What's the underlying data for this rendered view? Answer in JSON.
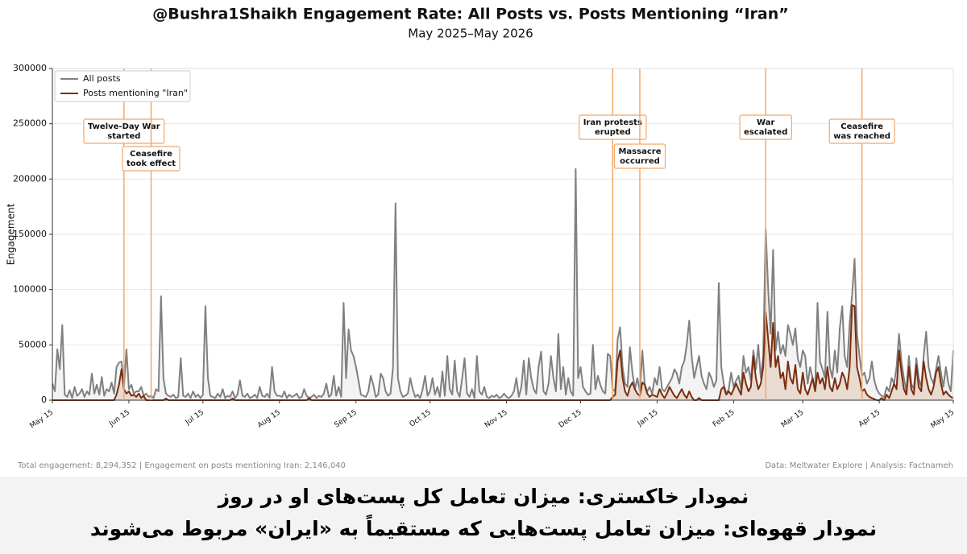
{
  "chart_data": {
    "type": "line",
    "title": "@Bushra1Shaikh Engagement Rate: All Posts vs. Posts Mentioning “Iran”",
    "subtitle": "May 2025–May 2026",
    "y_label": "Engagement",
    "ylim": [
      0,
      300000
    ],
    "yticks": [
      0,
      50000,
      100000,
      150000,
      200000,
      250000,
      300000
    ],
    "grid": true,
    "legend": "upper left",
    "categories": [
      "May 15",
      null,
      null,
      null,
      null,
      null,
      null,
      null,
      null,
      null,
      null,
      null,
      null,
      null,
      null,
      null,
      null,
      null,
      null,
      null,
      null,
      null,
      null,
      null,
      null,
      null,
      null,
      null,
      null,
      null,
      null,
      "Jun 15",
      null,
      null,
      null,
      null,
      null,
      null,
      null,
      null,
      null,
      null,
      null,
      null,
      null,
      null,
      null,
      null,
      null,
      null,
      null,
      null,
      null,
      null,
      null,
      null,
      null,
      null,
      null,
      null,
      null,
      "Jul 15",
      null,
      null,
      null,
      null,
      null,
      null,
      null,
      null,
      null,
      null,
      null,
      null,
      null,
      null,
      null,
      null,
      null,
      null,
      null,
      null,
      null,
      null,
      null,
      null,
      null,
      null,
      null,
      null,
      null,
      null,
      "Aug 15",
      null,
      null,
      null,
      null,
      null,
      null,
      null,
      null,
      null,
      null,
      null,
      null,
      null,
      null,
      null,
      null,
      null,
      null,
      null,
      null,
      null,
      null,
      null,
      null,
      null,
      null,
      null,
      null,
      null,
      null,
      "Sep 15",
      null,
      null,
      null,
      null,
      null,
      null,
      null,
      null,
      null,
      null,
      null,
      null,
      null,
      null,
      null,
      null,
      null,
      null,
      null,
      null,
      null,
      null,
      null,
      null,
      null,
      null,
      null,
      null,
      null,
      "Oct 15",
      null,
      null,
      null,
      null,
      null,
      null,
      null,
      null,
      null,
      null,
      null,
      null,
      null,
      null,
      null,
      null,
      null,
      null,
      null,
      null,
      null,
      null,
      null,
      null,
      null,
      null,
      null,
      null,
      null,
      null,
      "Nov 15",
      null,
      null,
      null,
      null,
      null,
      null,
      null,
      null,
      null,
      null,
      null,
      null,
      null,
      null,
      null,
      null,
      null,
      null,
      null,
      null,
      null,
      null,
      null,
      null,
      null,
      null,
      null,
      null,
      null,
      "Dec 15",
      null,
      null,
      null,
      null,
      null,
      null,
      null,
      null,
      null,
      null,
      null,
      null,
      null,
      null,
      null,
      null,
      null,
      null,
      null,
      null,
      null,
      null,
      null,
      null,
      null,
      null,
      null,
      null,
      null,
      null,
      "Jan 15",
      null,
      null,
      null,
      null,
      null,
      null,
      null,
      null,
      null,
      null,
      null,
      null,
      null,
      null,
      null,
      null,
      null,
      null,
      null,
      null,
      null,
      null,
      null,
      null,
      null,
      null,
      null,
      null,
      null,
      null,
      "Feb 15",
      null,
      null,
      null,
      null,
      null,
      null,
      null,
      null,
      null,
      null,
      null,
      null,
      null,
      null,
      null,
      null,
      null,
      null,
      null,
      null,
      null,
      null,
      null,
      null,
      null,
      null,
      null,
      "Mar 15",
      null,
      null,
      null,
      null,
      null,
      null,
      null,
      null,
      null,
      null,
      null,
      null,
      null,
      null,
      null,
      null,
      null,
      null,
      null,
      null,
      null,
      null,
      null,
      null,
      null,
      null,
      null,
      null,
      null,
      null,
      "Apr 15",
      null,
      null,
      null,
      null,
      null,
      null,
      null,
      null,
      null,
      null,
      null,
      null,
      null,
      null,
      null,
      null,
      null,
      null,
      null,
      null,
      null,
      null,
      null,
      null,
      null,
      null,
      null,
      null,
      null,
      "May 15"
    ],
    "series": [
      {
        "name": "All posts",
        "color": "#808080",
        "fill": "#f0f0f0",
        "values": [
          15000,
          8000,
          46000,
          28000,
          68000,
          5000,
          3000,
          9000,
          2000,
          12000,
          4000,
          6000,
          10000,
          3000,
          8000,
          5000,
          24000,
          6000,
          14000,
          5000,
          21000,
          4000,
          10000,
          8000,
          16000,
          6000,
          30000,
          34000,
          35000,
          12000,
          46000,
          10000,
          14000,
          6000,
          8000,
          8000,
          12000,
          4000,
          6000,
          3000,
          4000,
          2000,
          10000,
          8000,
          94000,
          20000,
          6000,
          4000,
          3000,
          5000,
          2000,
          3000,
          38000,
          4000,
          3000,
          6000,
          2000,
          8000,
          3000,
          5000,
          2000,
          5000,
          85000,
          20000,
          4000,
          3000,
          2000,
          6000,
          3000,
          10000,
          2000,
          4000,
          3000,
          8000,
          2000,
          5000,
          18000,
          4000,
          3000,
          6000,
          2000,
          3000,
          5000,
          2000,
          12000,
          4000,
          3000,
          6000,
          2000,
          30000,
          8000,
          4000,
          4000,
          3000,
          8000,
          2000,
          5000,
          3000,
          4000,
          6000,
          2000,
          3000,
          10000,
          4000,
          2000,
          3000,
          5000,
          2000,
          4000,
          3000,
          6000,
          15000,
          3000,
          5000,
          22000,
          4000,
          12000,
          3000,
          88000,
          20000,
          64000,
          45000,
          40000,
          30000,
          18000,
          5000,
          4000,
          3000,
          8000,
          22000,
          14000,
          3000,
          5000,
          24000,
          20000,
          8000,
          4000,
          6000,
          30000,
          178000,
          20000,
          8000,
          3000,
          4000,
          6000,
          20000,
          10000,
          3000,
          5000,
          2000,
          10000,
          22000,
          4000,
          8000,
          20000,
          5000,
          12000,
          3000,
          26000,
          4000,
          40000,
          10000,
          5000,
          36000,
          8000,
          3000,
          20000,
          38000,
          6000,
          3000,
          10000,
          2000,
          40000,
          8000,
          5000,
          12000,
          3000,
          2000,
          4000,
          3000,
          5000,
          2000,
          3000,
          6000,
          3000,
          2000,
          4000,
          8000,
          20000,
          3000,
          12000,
          36000,
          5000,
          38000,
          20000,
          10000,
          6000,
          30000,
          44000,
          8000,
          5000,
          15000,
          40000,
          20000,
          8000,
          60000,
          10000,
          30000,
          5000,
          20000,
          8000,
          4000,
          209000,
          20000,
          30000,
          12000,
          8000,
          5000,
          6000,
          50000,
          10000,
          22000,
          14000,
          8000,
          6000,
          42000,
          40000,
          10000,
          8000,
          55000,
          66000,
          30000,
          15000,
          12000,
          48000,
          25000,
          10000,
          20000,
          8000,
          45000,
          14000,
          8000,
          12000,
          6000,
          20000,
          14000,
          30000,
          10000,
          8000,
          12000,
          16000,
          20000,
          28000,
          24000,
          15000,
          30000,
          35000,
          50000,
          72000,
          40000,
          20000,
          30000,
          40000,
          22000,
          15000,
          10000,
          25000,
          20000,
          12000,
          18000,
          106000,
          30000,
          15000,
          6000,
          10000,
          25000,
          12000,
          18000,
          22000,
          10000,
          40000,
          25000,
          30000,
          18000,
          45000,
          28000,
          50000,
          20000,
          40000,
          155000,
          100000,
          60000,
          136000,
          45000,
          62000,
          42000,
          50000,
          40000,
          68000,
          60000,
          50000,
          65000,
          38000,
          30000,
          45000,
          40000,
          15000,
          30000,
          20000,
          10000,
          88000,
          35000,
          28000,
          20000,
          80000,
          30000,
          20000,
          45000,
          25000,
          65000,
          85000,
          40000,
          30000,
          70000,
          95000,
          128000,
          60000,
          40000,
          22000,
          25000,
          15000,
          20000,
          35000,
          18000,
          10000,
          6000,
          4000,
          3000,
          12000,
          8000,
          20000,
          15000,
          30000,
          60000,
          35000,
          20000,
          8000,
          40000,
          15000,
          10000,
          38000,
          20000,
          12000,
          40000,
          62000,
          30000,
          20000,
          15000,
          28000,
          40000,
          25000,
          12000,
          30000,
          15000,
          8000,
          45000
        ]
      },
      {
        "name": "Posts mentioning \"Iran\"",
        "color": "#7a2e0e",
        "fill": "#e6d3c9",
        "values": [
          0,
          0,
          0,
          0,
          0,
          0,
          0,
          0,
          0,
          0,
          0,
          0,
          0,
          0,
          0,
          0,
          0,
          0,
          0,
          0,
          0,
          0,
          0,
          0,
          0,
          0,
          5000,
          14000,
          28000,
          10000,
          6000,
          8000,
          4000,
          5000,
          3000,
          6000,
          2000,
          4000,
          0,
          0,
          0,
          0,
          0,
          0,
          0,
          0,
          1500,
          0,
          0,
          0,
          0,
          0,
          0,
          0,
          0,
          0,
          0,
          0,
          0,
          0,
          0,
          0,
          0,
          0,
          0,
          0,
          0,
          0,
          0,
          0,
          0,
          0,
          0,
          1500,
          0,
          0,
          0,
          0,
          0,
          0,
          0,
          0,
          0,
          0,
          0,
          0,
          0,
          0,
          0,
          0,
          0,
          0,
          0,
          0,
          0,
          0,
          0,
          0,
          0,
          0,
          0,
          0,
          0,
          0,
          2000,
          0,
          0,
          0,
          0,
          0,
          0,
          0,
          0,
          0,
          0,
          0,
          0,
          0,
          0,
          0,
          0,
          0,
          0,
          0,
          0,
          0,
          0,
          0,
          0,
          0,
          0,
          0,
          0,
          0,
          0,
          0,
          0,
          0,
          0,
          0,
          0,
          0,
          0,
          0,
          0,
          0,
          0,
          0,
          0,
          0,
          0,
          0,
          0,
          0,
          0,
          0,
          0,
          0,
          0,
          0,
          0,
          0,
          0,
          0,
          0,
          0,
          0,
          0,
          0,
          0,
          0,
          0,
          0,
          0,
          0,
          0,
          0,
          0,
          0,
          0,
          0,
          0,
          0,
          0,
          0,
          0,
          0,
          0,
          0,
          0,
          0,
          0,
          0,
          0,
          0,
          0,
          0,
          0,
          0,
          0,
          0,
          0,
          0,
          0,
          0,
          0,
          0,
          0,
          0,
          0,
          0,
          0,
          0,
          0,
          0,
          0,
          0,
          0,
          0,
          0,
          0,
          0,
          0,
          0,
          0,
          0,
          0,
          3000,
          5000,
          35000,
          45000,
          20000,
          8000,
          4000,
          12000,
          16000,
          10000,
          6000,
          4000,
          16000,
          14000,
          6000,
          3000,
          5000,
          4000,
          3000,
          10000,
          5000,
          2000,
          6000,
          12000,
          8000,
          4000,
          2000,
          6000,
          10000,
          5000,
          2000,
          8000,
          3000,
          0,
          0,
          2000,
          0,
          0,
          0,
          0,
          0,
          0,
          0,
          0,
          10000,
          12000,
          5000,
          8000,
          5000,
          10000,
          15000,
          10000,
          5000,
          25000,
          15000,
          8000,
          12000,
          40000,
          20000,
          10000,
          15000,
          30000,
          80000,
          55000,
          30000,
          70000,
          30000,
          40000,
          20000,
          25000,
          10000,
          35000,
          20000,
          15000,
          32000,
          10000,
          6000,
          25000,
          10000,
          5000,
          12000,
          20000,
          8000,
          25000,
          15000,
          20000,
          10000,
          30000,
          12000,
          8000,
          20000,
          10000,
          15000,
          25000,
          20000,
          10000,
          30000,
          86000,
          85000,
          30000,
          20000,
          8000,
          10000,
          5000,
          3000,
          2000,
          1000,
          0,
          0,
          2000,
          0,
          5000,
          2000,
          8000,
          15000,
          10000,
          45000,
          25000,
          10000,
          5000,
          30000,
          10000,
          5000,
          32000,
          12000,
          8000,
          35000,
          20000,
          10000,
          5000,
          12000,
          25000,
          30000,
          15000,
          5000,
          8000,
          5000,
          3000,
          2000
        ]
      }
    ],
    "annotation_color": "#f2a86a",
    "annotations": [
      {
        "lines": [
          "Twelve-Day War",
          "started"
        ],
        "x": 29
      },
      {
        "lines": [
          "Ceasefire",
          "took effect"
        ],
        "x": 40
      },
      {
        "lines": [
          "Iran protests",
          "erupted"
        ],
        "x": 227
      },
      {
        "lines": [
          "Massacre",
          "occurred"
        ],
        "x": 238
      },
      {
        "lines": [
          "War",
          "escalated"
        ],
        "x": 289
      },
      {
        "lines": [
          "Ceasefire",
          "was reached"
        ],
        "x": 328
      }
    ],
    "footer_left": "Total engagement: 8,294,352 | Engagement on posts mentioning Iran: 2,146,040",
    "footer_right": "Data: Meltwater Explore | Analysis: Factnameh"
  },
  "caption": {
    "lines": [
      "نمودار خاکستری: میزان تعامل کل پست‌های او در روز",
      "نمودار قهوه‌ای: میزان تعامل پست‌هایی که مستقیماً به «ایران» مربوط می‌شوند"
    ]
  }
}
